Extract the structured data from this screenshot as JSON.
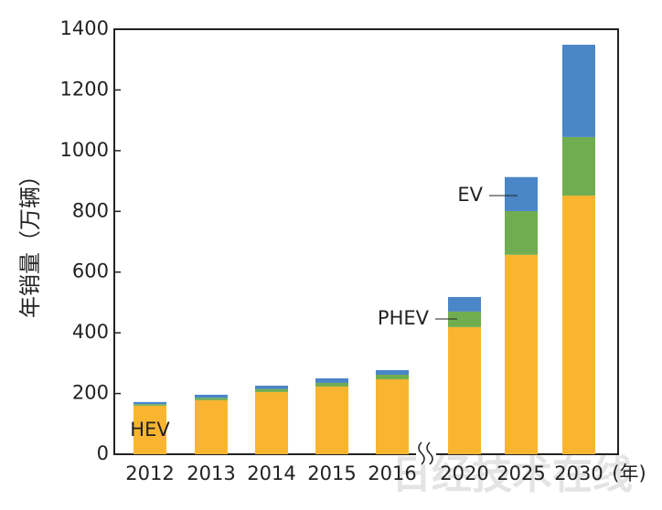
{
  "chart_data": {
    "type": "stacked-bar",
    "y_label": "年销量（万辆）",
    "x_unit": "(年)",
    "categories": [
      "2012",
      "2013",
      "2014",
      "2015",
      "2016",
      "2020",
      "2025",
      "2030"
    ],
    "series": [
      {
        "name": "HEV",
        "color": "#f9b52f",
        "values": [
          160,
          178,
          205,
          223,
          247,
          419,
          657,
          852
        ]
      },
      {
        "name": "PHEV",
        "color": "#70ad50",
        "values": [
          5,
          8,
          10,
          12,
          15,
          51,
          144,
          193
        ]
      },
      {
        "name": "EV",
        "color": "#4a86c8",
        "values": [
          7,
          10,
          11,
          15,
          15,
          48,
          112,
          304
        ]
      }
    ],
    "ylim": [
      0,
      1400
    ],
    "yticks": [
      0,
      200,
      400,
      600,
      800,
      1000,
      1200,
      1400
    ],
    "watermark": "日经技术在线"
  }
}
